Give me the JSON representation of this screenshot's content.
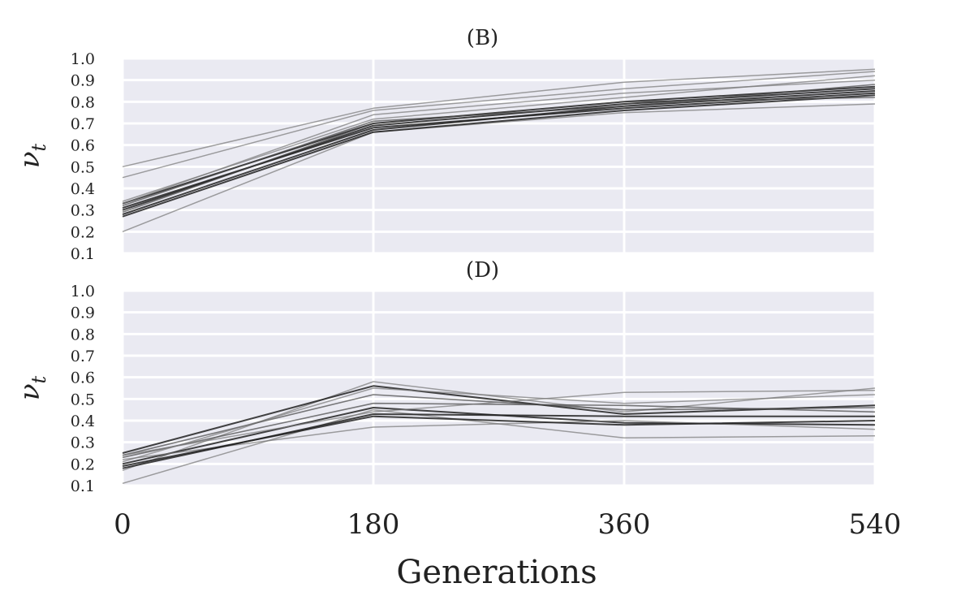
{
  "chart_data": [
    {
      "type": "line",
      "title": "(B)",
      "ylabel_symbol": "ν",
      "ylabel_subscript": "t",
      "x": [
        0,
        180,
        360,
        540
      ],
      "ylim": [
        0.1,
        1.0
      ],
      "yticks": [
        "0.1",
        "0.2",
        "0.3",
        "0.4",
        "0.5",
        "0.6",
        "0.7",
        "0.8",
        "0.9",
        "1.0"
      ],
      "grid": true,
      "series": [
        {
          "values": [
            0.5,
            0.77,
            0.89,
            0.95
          ],
          "shade": "light"
        },
        {
          "values": [
            0.45,
            0.76,
            0.86,
            0.94
          ],
          "shade": "light"
        },
        {
          "values": [
            0.2,
            0.66,
            0.75,
            0.79
          ],
          "shade": "light"
        },
        {
          "values": [
            0.34,
            0.72,
            0.82,
            0.92
          ],
          "shade": "light"
        },
        {
          "values": [
            0.31,
            0.68,
            0.77,
            0.84
          ],
          "shade": "dark"
        },
        {
          "values": [
            0.28,
            0.67,
            0.78,
            0.85
          ],
          "shade": "dark"
        },
        {
          "values": [
            0.33,
            0.7,
            0.8,
            0.87
          ],
          "shade": "dark"
        },
        {
          "values": [
            0.3,
            0.69,
            0.79,
            0.86
          ],
          "shade": "dark"
        },
        {
          "values": [
            0.27,
            0.66,
            0.76,
            0.83
          ],
          "shade": "dark"
        },
        {
          "values": [
            0.32,
            0.71,
            0.78,
            0.88
          ],
          "shade": "mid"
        },
        {
          "values": [
            0.29,
            0.7,
            0.8,
            0.82
          ],
          "shade": "mid"
        },
        {
          "values": [
            0.33,
            0.74,
            0.84,
            0.9
          ],
          "shade": "light"
        }
      ]
    },
    {
      "type": "line",
      "title": "(D)",
      "ylabel_symbol": "ν",
      "ylabel_subscript": "t",
      "x": [
        0,
        180,
        360,
        540
      ],
      "xticks": [
        "0",
        "180",
        "360",
        "540"
      ],
      "xlabel": "Generations",
      "ylim": [
        0.1,
        1.0
      ],
      "yticks": [
        "0.1",
        "0.2",
        "0.3",
        "0.4",
        "0.5",
        "0.6",
        "0.7",
        "0.8",
        "0.9",
        "1.0"
      ],
      "grid": true,
      "series": [
        {
          "values": [
            0.11,
            0.45,
            0.32,
            0.33
          ],
          "shade": "light"
        },
        {
          "values": [
            0.17,
            0.58,
            0.44,
            0.55
          ],
          "shade": "light"
        },
        {
          "values": [
            0.25,
            0.56,
            0.43,
            0.47
          ],
          "shade": "dark"
        },
        {
          "values": [
            0.2,
            0.46,
            0.39,
            0.38
          ],
          "shade": "dark"
        },
        {
          "values": [
            0.22,
            0.37,
            0.4,
            0.36
          ],
          "shade": "light"
        },
        {
          "values": [
            0.24,
            0.52,
            0.45,
            0.46
          ],
          "shade": "mid"
        },
        {
          "values": [
            0.18,
            0.43,
            0.42,
            0.42
          ],
          "shade": "dark"
        },
        {
          "values": [
            0.23,
            0.48,
            0.47,
            0.44
          ],
          "shade": "mid"
        },
        {
          "values": [
            0.21,
            0.55,
            0.48,
            0.52
          ],
          "shade": "light"
        },
        {
          "values": [
            0.19,
            0.42,
            0.38,
            0.4
          ],
          "shade": "dark"
        },
        {
          "values": [
            0.24,
            0.44,
            0.53,
            0.54
          ],
          "shade": "light"
        }
      ]
    }
  ],
  "colors": {
    "panel_bg": "#eaeaf2",
    "grid": "#ffffff",
    "line_dark": "#222222",
    "line_mid": "#444444",
    "line_light": "#777777"
  }
}
